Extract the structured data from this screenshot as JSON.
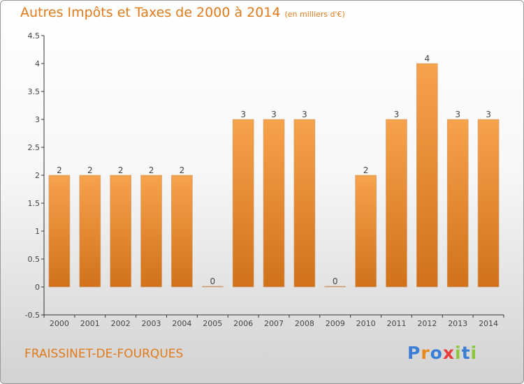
{
  "title": "Autres Impôts et Taxes de 2000 à 2014",
  "subtitle": "(en milliers d'€)",
  "commune": "FRAISSINET-DE-FOURQUES",
  "logo": {
    "letters": [
      "P",
      "r",
      "o",
      "x",
      "i",
      "t",
      "i"
    ],
    "colors": [
      "#3a7fd5",
      "#e8891c",
      "#3a7fd5",
      "#e83d3d",
      "#8dc63f",
      "#3a7fd5",
      "#8dc63f"
    ]
  },
  "chart_data": {
    "type": "bar",
    "categories": [
      "2000",
      "2001",
      "2002",
      "2003",
      "2004",
      "2005",
      "2006",
      "2007",
      "2008",
      "2009",
      "2010",
      "2011",
      "2012",
      "2013",
      "2014"
    ],
    "values": [
      2,
      2,
      2,
      2,
      2,
      0,
      3,
      3,
      3,
      0,
      2,
      3,
      4,
      3,
      3
    ],
    "data_labels": [
      "2",
      "2",
      "2",
      "2",
      "2",
      "0",
      "3",
      "3",
      "3",
      "0",
      "2",
      "3",
      "4",
      "3",
      "3"
    ],
    "ylim": [
      -0.5,
      4.5
    ],
    "yticks": [
      -0.5,
      0,
      0.5,
      1,
      1.5,
      2,
      2.5,
      3,
      3.5,
      4,
      4.5
    ],
    "ytick_labels": [
      "-0.5",
      "0",
      "0.5",
      "1",
      "1.5",
      "2",
      "2.5",
      "3",
      "3.5",
      "4",
      "4.5"
    ],
    "grid": false,
    "bar_color": "#f0922e"
  }
}
